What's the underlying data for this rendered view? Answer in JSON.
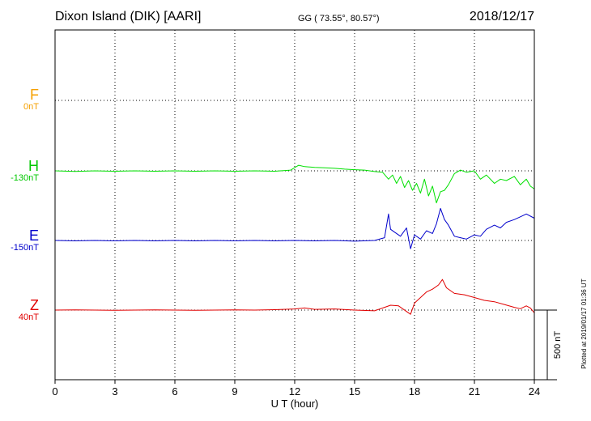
{
  "header": {
    "station": "Dixon Island (DIK)  [AARI]",
    "coords": "GG ( 73.55°,  80.57°)",
    "date": "2018/12/17"
  },
  "side_note": "Plotted at 2019/01/17 01:36 UT",
  "scale_bar_label": "500 nT",
  "colors": {
    "F": "#f5a000",
    "H": "#00e000",
    "E": "#0000cc",
    "Z": "#e00000"
  },
  "chart_data": {
    "type": "line",
    "xlabel": "U T (hour)",
    "xlim": [
      0,
      24
    ],
    "x_ticks": [
      "0",
      "3",
      "6",
      "9",
      "12",
      "15",
      "18",
      "21",
      "24"
    ],
    "series": [
      {
        "name": "F",
        "baseline": "0nT",
        "x": [],
        "y": []
      },
      {
        "name": "H",
        "baseline": "-130nT",
        "x": [
          0,
          1,
          2,
          3,
          4,
          5,
          6,
          7,
          8,
          9,
          10,
          11,
          11.8,
          12.2,
          12.5,
          13,
          13.5,
          14,
          14.5,
          15,
          15.5,
          16,
          16.4,
          16.7,
          16.9,
          17.1,
          17.3,
          17.5,
          17.7,
          17.9,
          18.1,
          18.3,
          18.5,
          18.7,
          18.9,
          19.1,
          19.3,
          19.5,
          19.7,
          20,
          20.3,
          20.6,
          21,
          21.3,
          21.6,
          22,
          22.3,
          22.6,
          23,
          23.3,
          23.6,
          23.8,
          24
        ],
        "y": [
          0,
          -4,
          0,
          -3,
          0,
          -3,
          0,
          -3,
          0,
          -3,
          0,
          -3,
          5,
          40,
          30,
          25,
          22,
          18,
          12,
          8,
          5,
          -5,
          -10,
          -60,
          -30,
          -90,
          -40,
          -120,
          -70,
          -140,
          -90,
          -160,
          -60,
          -180,
          -110,
          -230,
          -150,
          -140,
          -100,
          -20,
          5,
          -10,
          0,
          -60,
          -30,
          -90,
          -60,
          -70,
          -40,
          -100,
          -60,
          -110,
          -130
        ]
      },
      {
        "name": "E",
        "baseline": "-150nT",
        "x": [
          0,
          1,
          2,
          3,
          4,
          5,
          6,
          7,
          8,
          9,
          10,
          11,
          12,
          13,
          14,
          15,
          16,
          16.5,
          16.7,
          16.8,
          17,
          17.3,
          17.6,
          17.8,
          18,
          18.3,
          18.6,
          18.9,
          19.1,
          19.3,
          19.5,
          19.7,
          20,
          20.3,
          20.6,
          21,
          21.3,
          21.6,
          22,
          22.3,
          22.6,
          23,
          23.3,
          23.6,
          24
        ],
        "y": [
          0,
          -3,
          0,
          -3,
          0,
          -3,
          0,
          -3,
          0,
          -3,
          0,
          -3,
          0,
          -3,
          0,
          -5,
          0,
          20,
          190,
          80,
          60,
          30,
          90,
          -60,
          40,
          10,
          70,
          50,
          120,
          230,
          150,
          110,
          30,
          20,
          10,
          40,
          30,
          80,
          110,
          90,
          130,
          150,
          170,
          190,
          160
        ]
      },
      {
        "name": "Z",
        "baseline": "40nT",
        "x": [
          0,
          1,
          2,
          3,
          4,
          5,
          6,
          7,
          8,
          9,
          10,
          11,
          12,
          12.5,
          13,
          14,
          15,
          16,
          16.5,
          16.8,
          17.2,
          17.6,
          17.8,
          18,
          18.3,
          18.6,
          18.9,
          19.2,
          19.4,
          19.6,
          20,
          20.5,
          21,
          21.5,
          22,
          22.5,
          23,
          23.3,
          23.6,
          23.8,
          24
        ],
        "y": [
          0,
          2,
          0,
          -1,
          0,
          2,
          0,
          -2,
          0,
          2,
          0,
          3,
          8,
          15,
          5,
          8,
          0,
          -5,
          20,
          35,
          30,
          -10,
          -30,
          50,
          90,
          130,
          150,
          180,
          220,
          160,
          120,
          110,
          90,
          70,
          60,
          40,
          20,
          10,
          30,
          15,
          -20
        ]
      }
    ]
  }
}
